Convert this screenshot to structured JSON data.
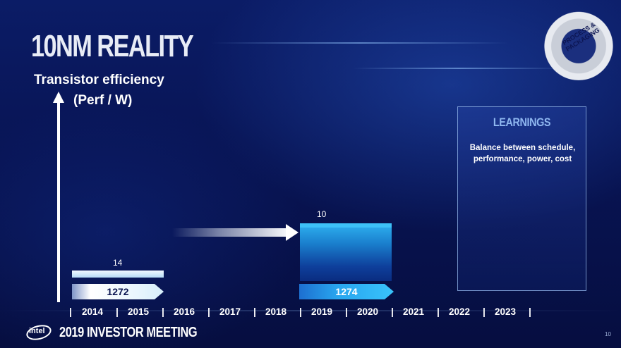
{
  "slide": {
    "title": "10NM REALITY",
    "badge": "PROCESS & PACKAGING",
    "y_axis_label_line1": "Transistor efficiency",
    "y_axis_label_line2": "(Perf / W)",
    "page_number": "10"
  },
  "timeline": {
    "separator": "|",
    "years": [
      "2014",
      "2015",
      "2016",
      "2017",
      "2018",
      "2019",
      "2020",
      "2021",
      "2022",
      "2023"
    ]
  },
  "markers": {
    "bar_14_label": "14",
    "node_1272_label": "1272",
    "bar_10_label": "10",
    "node_1274_label": "1274"
  },
  "learnings": {
    "title": "LEARNINGS",
    "text": "Balance between schedule, performance, power, cost"
  },
  "footer": {
    "logo": "intel",
    "event": "2019 INVESTOR MEETING"
  },
  "colors": {
    "background": "#081454",
    "accent_blue": "#2fb2f1",
    "panel_title": "#8fb7f0"
  }
}
